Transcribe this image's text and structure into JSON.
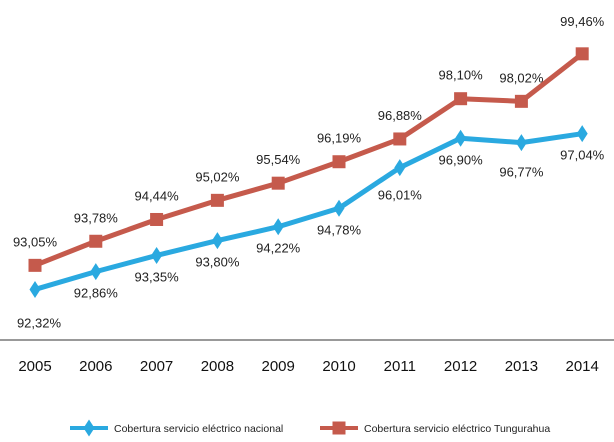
{
  "chart_data": {
    "type": "line",
    "title": "",
    "xlabel": "",
    "ylabel": "",
    "categories": [
      "2005",
      "2006",
      "2007",
      "2008",
      "2009",
      "2010",
      "2011",
      "2012",
      "2013",
      "2014"
    ],
    "ylim": [
      92,
      100
    ],
    "grid": false,
    "legend_position": "bottom",
    "series": [
      {
        "name": "Cobertura servicio eléctrico nacional",
        "color": "#2aa9e0",
        "marker": "diamond",
        "values": [
          92.32,
          92.86,
          93.35,
          93.8,
          94.22,
          94.78,
          96.01,
          96.9,
          96.77,
          97.04
        ],
        "labels": [
          "92,32%",
          "92,86%",
          "93,35%",
          "93,80%",
          "94,22%",
          "94,78%",
          "96,01%",
          "96,90%",
          "96,77%",
          "97,04%"
        ]
      },
      {
        "name": "Cobertura servicio eléctrico Tungurahua",
        "color": "#c55a4c",
        "marker": "square",
        "values": [
          93.05,
          93.78,
          94.44,
          95.02,
          95.54,
          96.19,
          96.88,
          98.1,
          98.02,
          99.46
        ],
        "labels": [
          "93,05%",
          "93,78%",
          "94,44%",
          "95,02%",
          "95,54%",
          "96,19%",
          "96,88%",
          "98,10%",
          "98,02%",
          "99,46%"
        ]
      }
    ]
  }
}
